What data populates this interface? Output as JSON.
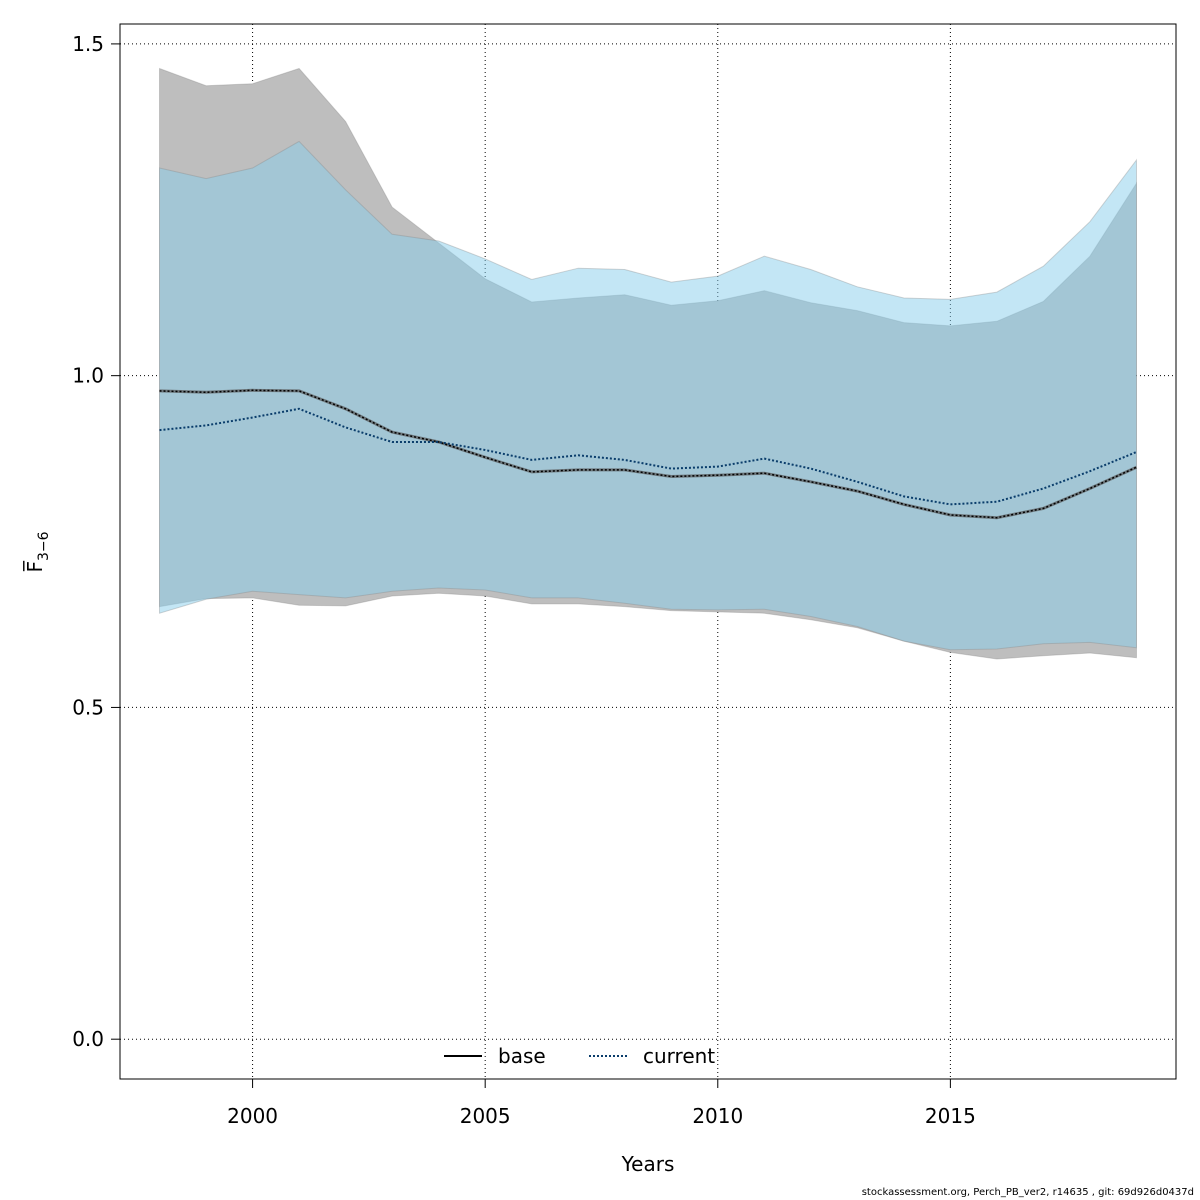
{
  "chart_data": {
    "type": "area",
    "xlabel": "Years",
    "ylabel": "F̅",
    "ylabel_sub": "3−6",
    "xlim": [
      1997.15,
      2019.85
    ],
    "ylim": [
      -0.06,
      1.53
    ],
    "xticks": [
      2000,
      2005,
      2010,
      2015
    ],
    "yticks": [
      0.0,
      0.5,
      1.0,
      1.5
    ],
    "ytick_labels": [
      "0.0",
      "0.5",
      "1.0",
      "1.5"
    ],
    "grid": true,
    "legend_position": "bottom-center",
    "x": [
      1998,
      1999,
      2000,
      2001,
      2002,
      2003,
      2004,
      2005,
      2006,
      2007,
      2008,
      2009,
      2010,
      2011,
      2012,
      2013,
      2014,
      2015,
      2016,
      2017,
      2018,
      2019
    ],
    "series": [
      {
        "name": "base",
        "line_style": "solid",
        "line_color": "#000000",
        "band_color": "#bebebe",
        "values": [
          0.977,
          0.975,
          0.978,
          0.977,
          0.95,
          0.915,
          0.9,
          0.877,
          0.855,
          0.858,
          0.858,
          0.848,
          0.85,
          0.853,
          0.84,
          0.826,
          0.806,
          0.79,
          0.786,
          0.8,
          0.83,
          0.862
        ],
        "lower": [
          0.652,
          0.664,
          0.665,
          0.654,
          0.653,
          0.668,
          0.672,
          0.668,
          0.656,
          0.656,
          0.652,
          0.646,
          0.644,
          0.642,
          0.632,
          0.62,
          0.6,
          0.583,
          0.573,
          0.578,
          0.582,
          0.575
        ],
        "upper": [
          1.463,
          1.437,
          1.44,
          1.463,
          1.383,
          1.254,
          1.2,
          1.146,
          1.111,
          1.117,
          1.122,
          1.106,
          1.113,
          1.128,
          1.11,
          1.098,
          1.08,
          1.075,
          1.082,
          1.112,
          1.18,
          1.29
        ]
      },
      {
        "name": "current",
        "line_style": "dotted",
        "line_color": "#0a3d6b",
        "band_color": "#87ceeb",
        "values": [
          0.918,
          0.925,
          0.937,
          0.95,
          0.922,
          0.9,
          0.9,
          0.888,
          0.873,
          0.88,
          0.873,
          0.86,
          0.863,
          0.875,
          0.86,
          0.84,
          0.818,
          0.806,
          0.81,
          0.83,
          0.856,
          0.885
        ],
        "lower": [
          0.642,
          0.663,
          0.675,
          0.67,
          0.665,
          0.675,
          0.68,
          0.677,
          0.665,
          0.665,
          0.657,
          0.648,
          0.647,
          0.648,
          0.637,
          0.622,
          0.6,
          0.587,
          0.588,
          0.596,
          0.598,
          0.59
        ],
        "upper": [
          1.313,
          1.297,
          1.313,
          1.353,
          1.28,
          1.213,
          1.203,
          1.176,
          1.145,
          1.162,
          1.16,
          1.141,
          1.15,
          1.18,
          1.16,
          1.134,
          1.117,
          1.115,
          1.126,
          1.165,
          1.232,
          1.325
        ]
      }
    ]
  },
  "footer": "stockassessment.org, Perch_PB_ver2, r14635 , git: 69d926d0437d"
}
